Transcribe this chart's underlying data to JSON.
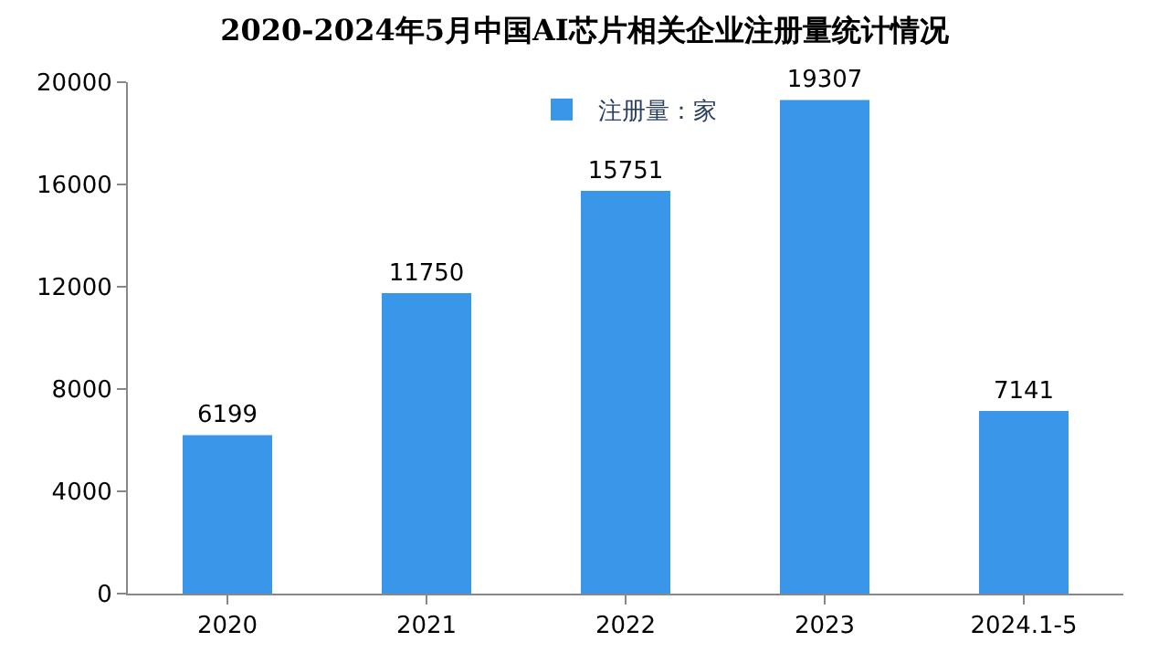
{
  "chart_data": {
    "type": "bar",
    "title": "2020-2024年5月中国AI芯片相关企业注册量统计情况",
    "categories": [
      "2020",
      "2021",
      "2022",
      "2023",
      "2024.1-5"
    ],
    "series": [
      {
        "name": "注册量：家",
        "color": "#3a96e8",
        "values": [
          6199,
          11750,
          15751,
          19307,
          7141
        ]
      }
    ],
    "ylim": [
      0,
      20000
    ],
    "yticks": [
      0,
      4000,
      8000,
      12000,
      16000,
      20000
    ],
    "data_labels": true,
    "legend": "top"
  }
}
